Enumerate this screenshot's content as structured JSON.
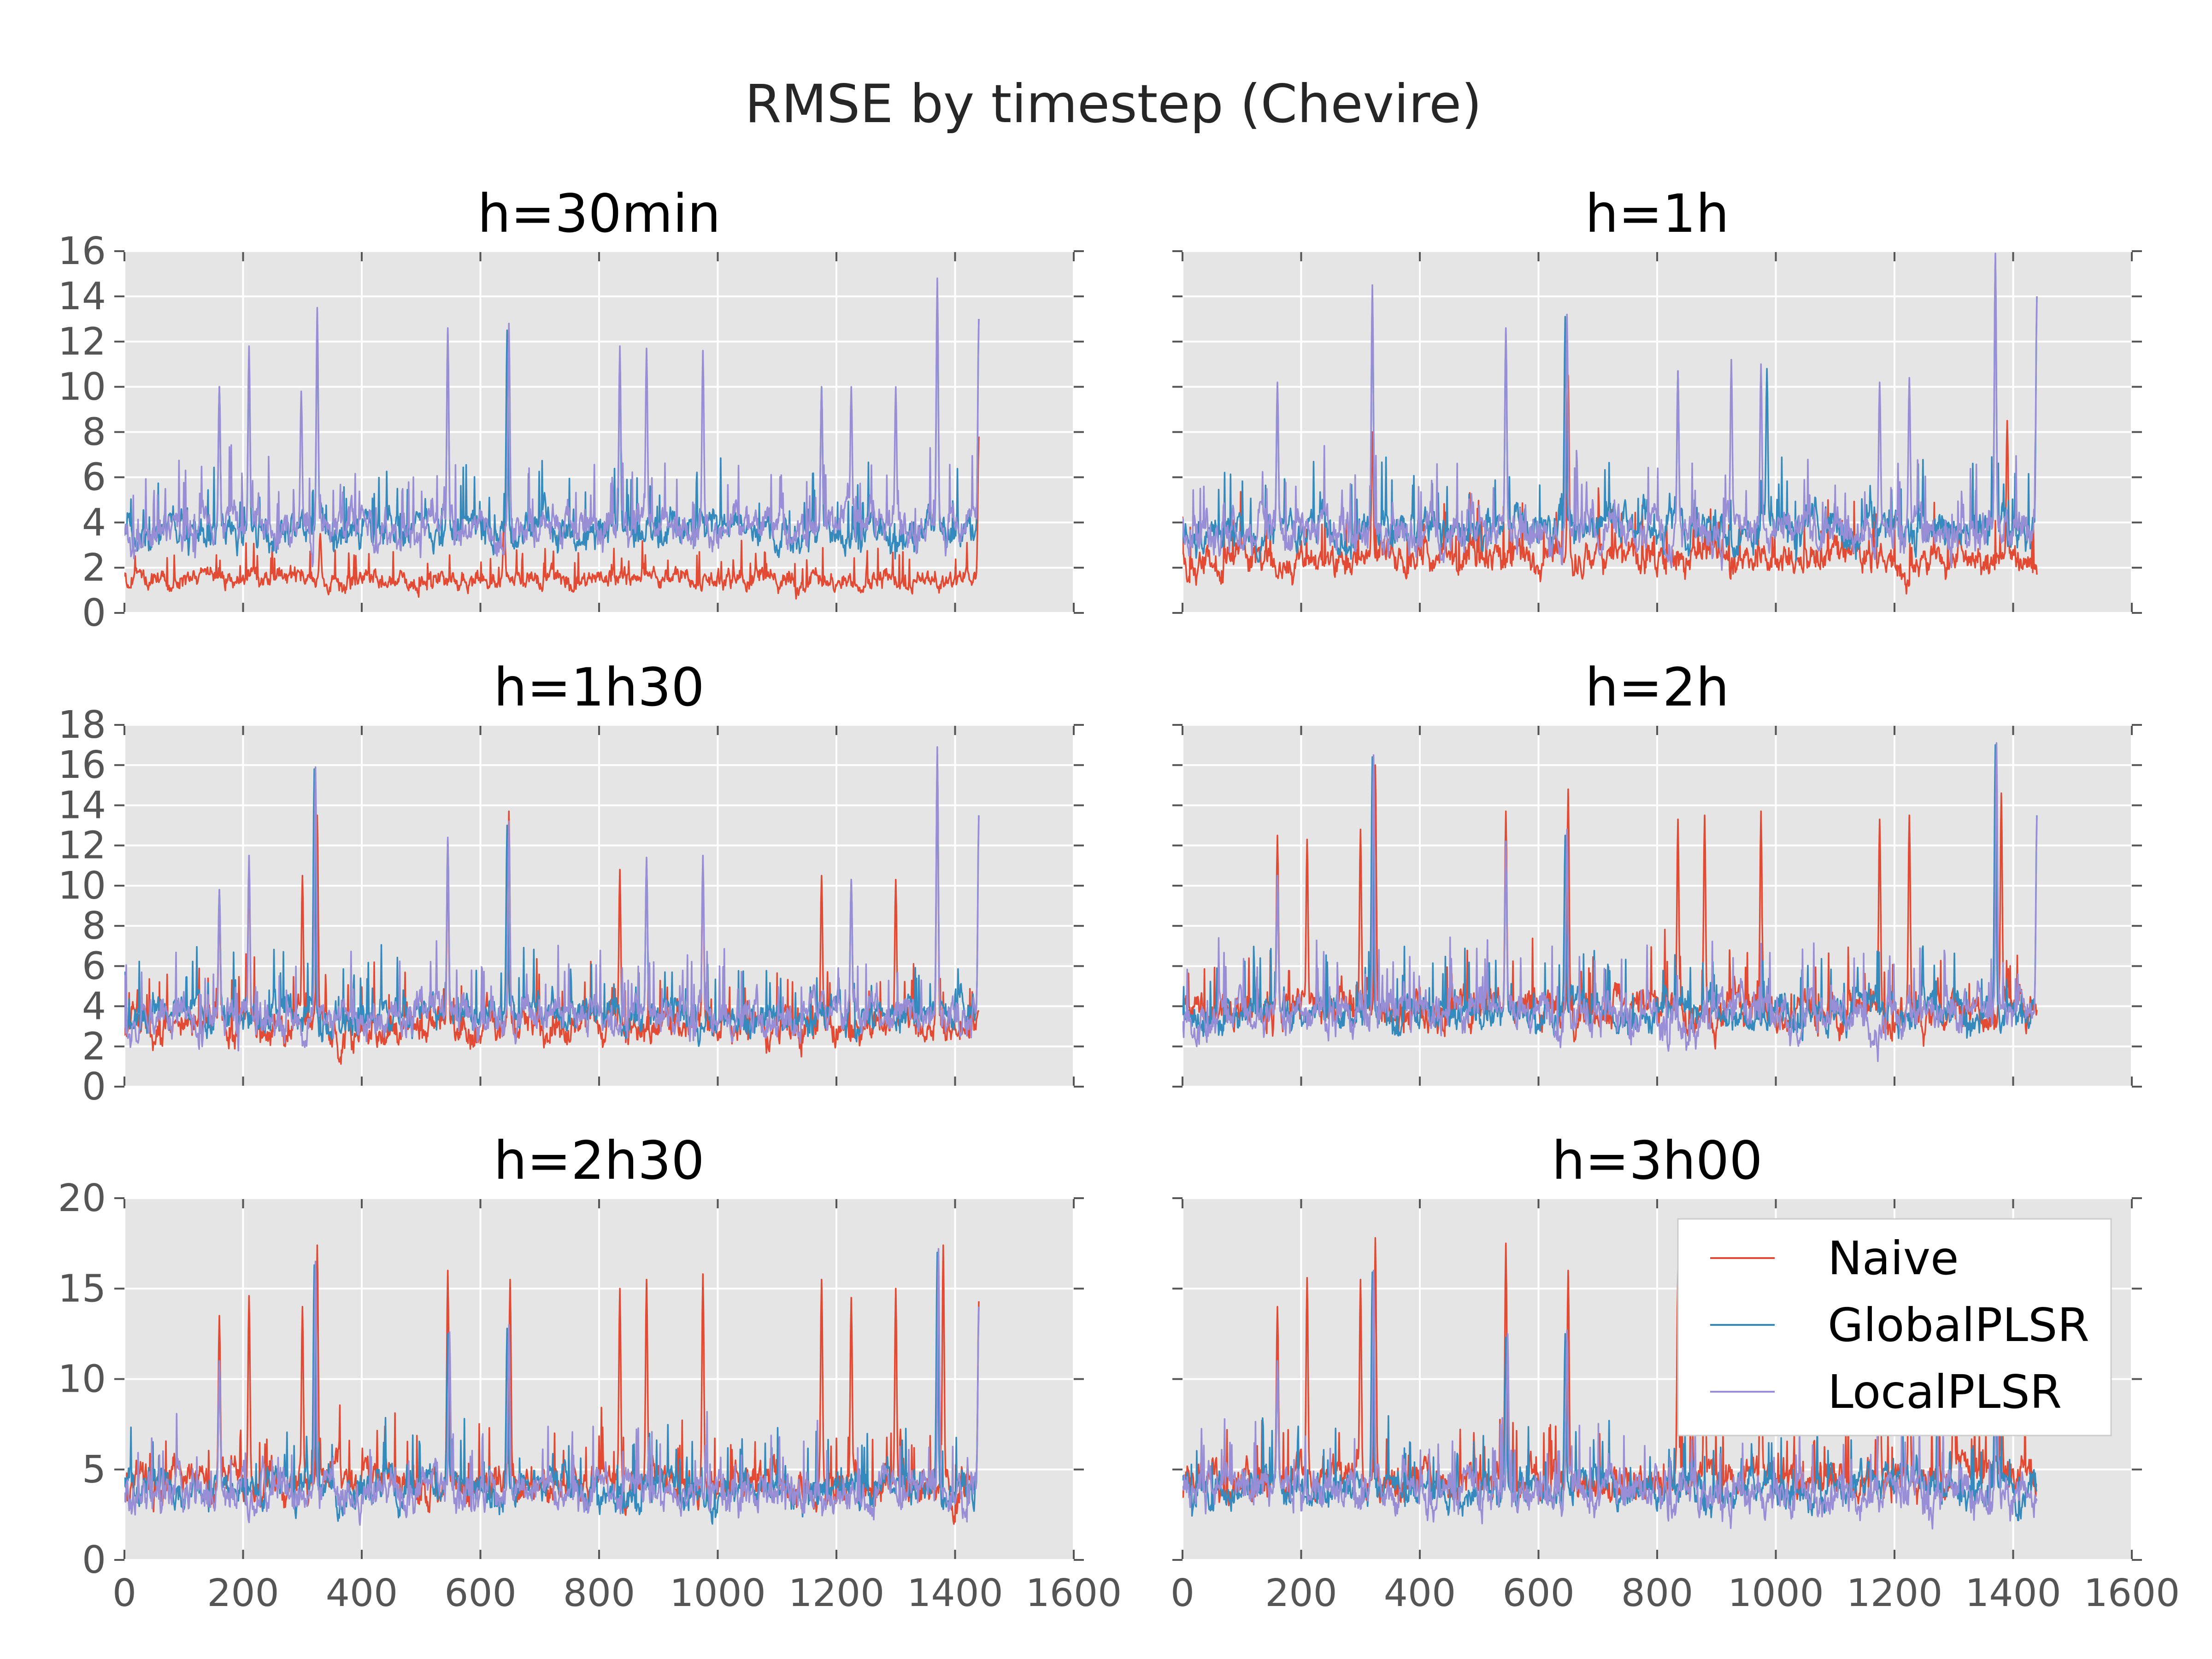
{
  "figure": {
    "suptitle": "RMSE by timestep (Chevire)"
  },
  "colors": {
    "Naive": "#e24a33",
    "GlobalPLSR": "#348abd",
    "LocalPLSR": "#988ed5"
  },
  "chart_data": [
    {
      "type": "line",
      "title": "h=30min",
      "xlim": [
        0,
        1600
      ],
      "ylim": [
        0,
        16
      ],
      "xticks": [
        "0",
        "200",
        "400",
        "600",
        "800",
        "1000",
        "1200",
        "1400",
        "1600"
      ],
      "yticks": [
        "0",
        "2",
        "4",
        "6",
        "8",
        "10",
        "12",
        "14",
        "16"
      ],
      "show_xtick_labels": false,
      "show_ytick_labels": true,
      "x_max": 1440,
      "series": [
        {
          "name": "Naive",
          "base": 1.5,
          "noise": 0.5,
          "spikes": [
            [
              330,
              3.5
            ],
            [
              640,
              4.5
            ],
            [
              1270,
              0.6
            ],
            [
              1440,
              7.8
            ]
          ]
        },
        {
          "name": "GlobalPLSR",
          "base": 3.6,
          "noise": 0.9,
          "spikes": [
            [
              160,
              10
            ],
            [
              210,
              11.5
            ],
            [
              325,
              13.3
            ],
            [
              545,
              12.5
            ],
            [
              645,
              12.5
            ],
            [
              835,
              11.5
            ],
            [
              1175,
              10
            ],
            [
              1370,
              14.5
            ],
            [
              1440,
              13
            ]
          ]
        },
        {
          "name": "LocalPLSR",
          "base": 3.8,
          "noise": 1.0,
          "spikes": [
            [
              160,
              10
            ],
            [
              210,
              11.8
            ],
            [
              298,
              9.8
            ],
            [
              325,
              13.5
            ],
            [
              545,
              12.6
            ],
            [
              648,
              12.8
            ],
            [
              835,
              11.8
            ],
            [
              880,
              11.7
            ],
            [
              975,
              11.6
            ],
            [
              1175,
              10
            ],
            [
              1225,
              10
            ],
            [
              1300,
              10
            ],
            [
              1370,
              14.8
            ],
            [
              1440,
              13
            ]
          ]
        }
      ]
    },
    {
      "type": "line",
      "title": "h=1h",
      "xlim": [
        0,
        1600
      ],
      "ylim": [
        0,
        16
      ],
      "xticks": [
        "0",
        "200",
        "400",
        "600",
        "800",
        "1000",
        "1200",
        "1400",
        "1600"
      ],
      "yticks": [
        "0",
        "2",
        "4",
        "6",
        "8",
        "10",
        "12",
        "14",
        "16"
      ],
      "show_xtick_labels": false,
      "show_ytick_labels": false,
      "x_max": 1440,
      "series": [
        {
          "name": "Naive",
          "base": 2.4,
          "noise": 0.8,
          "spikes": [
            [
              320,
              8
            ],
            [
              650,
              10.5
            ],
            [
              1390,
              8.5
            ]
          ]
        },
        {
          "name": "GlobalPLSR",
          "base": 3.6,
          "noise": 1.0,
          "spikes": [
            [
              160,
              10
            ],
            [
              320,
              14.3
            ],
            [
              545,
              12.5
            ],
            [
              645,
              13.1
            ],
            [
              835,
              10.7
            ],
            [
              985,
              10.8
            ],
            [
              1370,
              15.8
            ],
            [
              1440,
              14
            ]
          ]
        },
        {
          "name": "LocalPLSR",
          "base": 3.7,
          "noise": 1.1,
          "spikes": [
            [
              160,
              10.2
            ],
            [
              320,
              14.5
            ],
            [
              545,
              12.6
            ],
            [
              648,
              13.2
            ],
            [
              835,
              10.7
            ],
            [
              925,
              11.2
            ],
            [
              975,
              11
            ],
            [
              1175,
              10.2
            ],
            [
              1225,
              10.4
            ],
            [
              1370,
              15.9
            ],
            [
              1440,
              14
            ]
          ]
        }
      ]
    },
    {
      "type": "line",
      "title": "h=1h30",
      "xlim": [
        0,
        1600
      ],
      "ylim": [
        0,
        18
      ],
      "xticks": [
        "0",
        "200",
        "400",
        "600",
        "800",
        "1000",
        "1200",
        "1400",
        "1600"
      ],
      "yticks": [
        "0",
        "2",
        "4",
        "6",
        "8",
        "10",
        "12",
        "14",
        "16",
        "18"
      ],
      "show_xtick_labels": false,
      "show_ytick_labels": true,
      "x_max": 1440,
      "series": [
        {
          "name": "Naive",
          "base": 3.0,
          "noise": 1.0,
          "spikes": [
            [
              160,
              9.5
            ],
            [
              210,
              11.3
            ],
            [
              300,
              10.5
            ],
            [
              325,
              13.5
            ],
            [
              545,
              11.5
            ],
            [
              648,
              13.7
            ],
            [
              835,
              10.8
            ],
            [
              975,
              11.2
            ],
            [
              1175,
              10.5
            ],
            [
              1300,
              10.3
            ],
            [
              1370,
              16.5
            ]
          ]
        },
        {
          "name": "GlobalPLSR",
          "base": 3.6,
          "noise": 1.0,
          "spikes": [
            [
              160,
              9.8
            ],
            [
              320,
              15.8
            ],
            [
              545,
              12.3
            ],
            [
              645,
              13
            ],
            [
              880,
              11.3
            ],
            [
              1225,
              10.3
            ],
            [
              1370,
              16.5
            ],
            [
              1440,
              13.5
            ]
          ]
        },
        {
          "name": "LocalPLSR",
          "base": 3.5,
          "noise": 1.1,
          "spikes": [
            [
              160,
              9.8
            ],
            [
              210,
              11.5
            ],
            [
              322,
              15.9
            ],
            [
              545,
              12.4
            ],
            [
              648,
              13.2
            ],
            [
              880,
              11.4
            ],
            [
              975,
              11.5
            ],
            [
              1225,
              10.3
            ],
            [
              1370,
              16.9
            ],
            [
              1440,
              13.5
            ]
          ]
        }
      ]
    },
    {
      "type": "line",
      "title": "h=2h",
      "xlim": [
        0,
        1600
      ],
      "ylim": [
        0,
        18
      ],
      "xticks": [
        "0",
        "200",
        "400",
        "600",
        "800",
        "1000",
        "1200",
        "1400",
        "1600"
      ],
      "yticks": [
        "0",
        "2",
        "4",
        "6",
        "8",
        "10",
        "12",
        "14",
        "16",
        "18"
      ],
      "show_xtick_labels": false,
      "show_ytick_labels": false,
      "x_max": 1440,
      "series": [
        {
          "name": "Naive",
          "base": 3.8,
          "noise": 1.1,
          "spikes": [
            [
              160,
              12.5
            ],
            [
              210,
              12.3
            ],
            [
              300,
              12.8
            ],
            [
              325,
              16
            ],
            [
              545,
              13.7
            ],
            [
              650,
              14.8
            ],
            [
              835,
              13.3
            ],
            [
              880,
              13.5
            ],
            [
              975,
              13.7
            ],
            [
              1175,
              13.3
            ],
            [
              1225,
              13.5
            ],
            [
              1380,
              14.6
            ]
          ]
        },
        {
          "name": "GlobalPLSR",
          "base": 3.7,
          "noise": 1.0,
          "spikes": [
            [
              160,
              10.5
            ],
            [
              320,
              16.4
            ],
            [
              545,
              12
            ],
            [
              645,
              12.5
            ],
            [
              1370,
              17
            ],
            [
              1440,
              13.5
            ]
          ]
        },
        {
          "name": "LocalPLSR",
          "base": 3.6,
          "noise": 1.2,
          "spikes": [
            [
              160,
              10.5
            ],
            [
              322,
              16.5
            ],
            [
              545,
              12.2
            ],
            [
              648,
              12.8
            ],
            [
              1372,
              17.1
            ],
            [
              1440,
              13.5
            ]
          ]
        }
      ]
    },
    {
      "type": "line",
      "title": "h=2h30",
      "xlim": [
        0,
        1600
      ],
      "ylim": [
        0,
        20
      ],
      "xticks": [
        "0",
        "200",
        "400",
        "600",
        "800",
        "1000",
        "1200",
        "1400",
        "1600"
      ],
      "yticks": [
        "0",
        "5",
        "10",
        "15",
        "20"
      ],
      "show_xtick_labels": true,
      "show_ytick_labels": true,
      "x_max": 1440,
      "series": [
        {
          "name": "Naive",
          "base": 4.2,
          "noise": 1.2,
          "spikes": [
            [
              160,
              13.5
            ],
            [
              210,
              14.6
            ],
            [
              300,
              14
            ],
            [
              325,
              17.4
            ],
            [
              545,
              16
            ],
            [
              650,
              15.5
            ],
            [
              835,
              15
            ],
            [
              880,
              15.5
            ],
            [
              975,
              15.8
            ],
            [
              1175,
              15.5
            ],
            [
              1225,
              14.5
            ],
            [
              1300,
              15
            ],
            [
              1380,
              17.4
            ],
            [
              1440,
              14.3
            ]
          ]
        },
        {
          "name": "GlobalPLSR",
          "base": 3.9,
          "noise": 1.1,
          "spikes": [
            [
              160,
              11
            ],
            [
              320,
              16.3
            ],
            [
              545,
              12.5
            ],
            [
              645,
              12.8
            ],
            [
              1370,
              17
            ],
            [
              1440,
              14
            ]
          ]
        },
        {
          "name": "LocalPLSR",
          "base": 3.8,
          "noise": 1.3,
          "spikes": [
            [
              160,
              11
            ],
            [
              322,
              16.5
            ],
            [
              548,
              12.6
            ],
            [
              648,
              13
            ],
            [
              1372,
              17.2
            ],
            [
              1440,
              14
            ]
          ]
        }
      ]
    },
    {
      "type": "line",
      "title": "h=3h00",
      "xlim": [
        0,
        1600
      ],
      "ylim": [
        0,
        20
      ],
      "xticks": [
        "0",
        "200",
        "400",
        "600",
        "800",
        "1000",
        "1200",
        "1400",
        "1600"
      ],
      "yticks": [
        "0",
        "5",
        "10",
        "15",
        "20"
      ],
      "show_xtick_labels": true,
      "show_ytick_labels": false,
      "x_max": 1440,
      "legend": {
        "position": "upper right",
        "entries": [
          "Naive",
          "GlobalPLSR",
          "LocalPLSR"
        ]
      },
      "series": [
        {
          "name": "Naive",
          "base": 4.3,
          "noise": 1.2,
          "spikes": [
            [
              160,
              14
            ],
            [
              210,
              15.6
            ],
            [
              300,
              15.5
            ],
            [
              325,
              17.8
            ],
            [
              545,
              17.5
            ],
            [
              650,
              16
            ],
            [
              835,
              16
            ],
            [
              880,
              15.5
            ],
            [
              975,
              15.8
            ],
            [
              1175,
              15.5
            ],
            [
              1225,
              15
            ],
            [
              1300,
              15
            ],
            [
              1380,
              16
            ]
          ]
        },
        {
          "name": "GlobalPLSR",
          "base": 4.0,
          "noise": 1.1,
          "spikes": [
            [
              160,
              11
            ],
            [
              320,
              15.9
            ],
            [
              545,
              12.3
            ],
            [
              645,
              12.5
            ],
            [
              1370,
              14
            ]
          ]
        },
        {
          "name": "LocalPLSR",
          "base": 3.8,
          "noise": 1.3,
          "spikes": [
            [
              160,
              11
            ],
            [
              322,
              16
            ],
            [
              548,
              12.5
            ],
            [
              648,
              12.7
            ],
            [
              1372,
              14
            ]
          ]
        }
      ]
    }
  ]
}
